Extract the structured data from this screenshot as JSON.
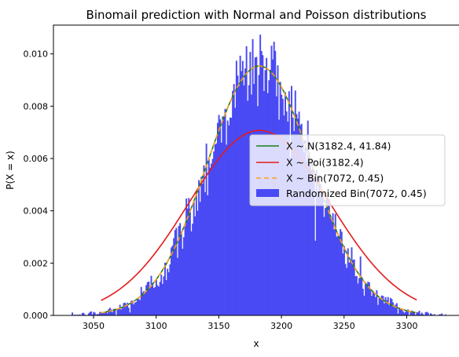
{
  "chart_data": {
    "type": "bar",
    "title": "Binomail prediction with Normal and Poisson distributions",
    "xlabel": "x",
    "ylabel": "P(X = x)",
    "xlim": [
      3018,
      3343
    ],
    "ylim": [
      0,
      0.0111
    ],
    "xticks": [
      3050,
      3100,
      3150,
      3200,
      3250,
      3300
    ],
    "xtick_labels": [
      "3050",
      "3100",
      "3150",
      "3200",
      "3250",
      "3300"
    ],
    "yticks": [
      0,
      0.002,
      0.004,
      0.006,
      0.008,
      0.01
    ],
    "ytick_labels": [
      "0.000",
      "0.002",
      "0.004",
      "0.006",
      "0.008",
      "0.010"
    ],
    "grid": false,
    "legend_position": "center-right",
    "histogram": {
      "name": "Randomized Bin(7072, 0.45)",
      "color": "#4a4af4",
      "bin_width": 1,
      "x_range": [
        3033,
        3331
      ],
      "mean": 3182.4,
      "sd": 41.84,
      "peak_density": 0.0096
    },
    "series": [
      {
        "name": "X ~ N(3182.4, 41.84)",
        "kind": "normal",
        "mean": 3182.4,
        "sd": 41.84,
        "x_range": [
          3056,
          3308
        ],
        "color": "#1a7f1a",
        "style": "solid"
      },
      {
        "name": "X ~ Poi(3182.4)",
        "kind": "poisson",
        "mean": 3182.4,
        "sd": 56.41,
        "x_range": [
          3056,
          3308
        ],
        "color": "#e41a1a",
        "style": "solid"
      },
      {
        "name": "X ~ Bin(7072, 0.45)",
        "kind": "binomial",
        "mean": 3182.4,
        "sd": 41.84,
        "x_range": [
          3056,
          3308
        ],
        "color": "#ff9f1c",
        "style": "dashed"
      }
    ]
  }
}
